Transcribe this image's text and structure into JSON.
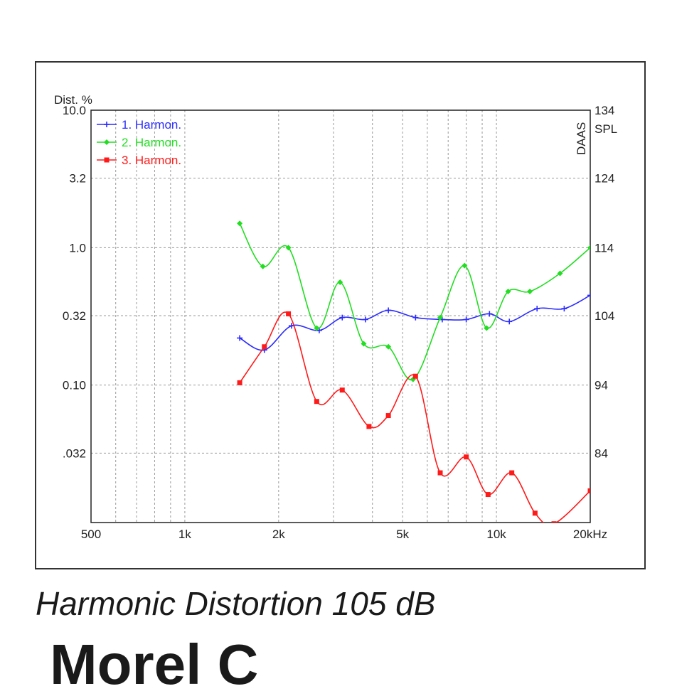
{
  "caption": "Harmonic Distortion 105 dB",
  "next_heading": "Morel    C",
  "chart_data": {
    "type": "line",
    "title": "",
    "ylabel": "Dist. %",
    "y2label": "SPL",
    "watermark": "DAAS",
    "x_scale": "log",
    "xlim": [
      500,
      20000
    ],
    "ylim": [
      0.01,
      10.0
    ],
    "y_scale": "log",
    "y2lim": [
      74,
      134
    ],
    "grid": true,
    "legend_position": "top-left",
    "x_tick_values": [
      500,
      1000,
      2000,
      5000,
      10000,
      20000
    ],
    "x_tick_labels": [
      "500",
      "1k",
      "2k",
      "5k",
      "10k",
      "20kHz"
    ],
    "y_tick_values": [
      10.0,
      3.2,
      1.0,
      0.32,
      0.1,
      0.032
    ],
    "y_tick_labels": [
      "10.0",
      "3.2",
      "1.0",
      "0.32",
      "0.10",
      ".032"
    ],
    "y2_tick_labels": [
      "134",
      "124",
      "114",
      "104",
      "94",
      "84"
    ],
    "minor_x_gridlines": [
      600,
      700,
      800,
      900,
      3000,
      4000,
      6000,
      7000,
      8000,
      9000
    ],
    "series": [
      {
        "name": "1. Harmon.",
        "color": "#2b2bff",
        "marker": "plus",
        "x": [
          1500,
          1800,
          2200,
          2700,
          3200,
          3800,
          4500,
          5500,
          6700,
          8000,
          9500,
          11000,
          13500,
          16500,
          20000
        ],
        "y": [
          0.22,
          0.18,
          0.27,
          0.25,
          0.31,
          0.3,
          0.35,
          0.31,
          0.3,
          0.3,
          0.33,
          0.29,
          0.36,
          0.36,
          0.45
        ]
      },
      {
        "name": "2. Harmon.",
        "color": "#22dd22",
        "marker": "diamond",
        "x": [
          1500,
          1780,
          2150,
          2650,
          3150,
          3750,
          4500,
          5400,
          6600,
          7900,
          9300,
          10900,
          12800,
          16000,
          20000
        ],
        "y": [
          1.5,
          0.73,
          1.0,
          0.26,
          0.56,
          0.2,
          0.19,
          0.11,
          0.31,
          0.74,
          0.26,
          0.48,
          0.48,
          0.65,
          1.0
        ]
      },
      {
        "name": "3. Harmon.",
        "color": "#ff1a1a",
        "marker": "square",
        "x": [
          1500,
          1800,
          2150,
          2650,
          3200,
          3900,
          4500,
          5500,
          6600,
          8000,
          9400,
          11200,
          13300,
          15300,
          20000
        ],
        "y": [
          0.104,
          0.19,
          0.33,
          0.076,
          0.092,
          0.05,
          0.06,
          0.116,
          0.023,
          0.03,
          0.016,
          0.023,
          0.0117,
          0.0098,
          0.017
        ]
      }
    ]
  }
}
